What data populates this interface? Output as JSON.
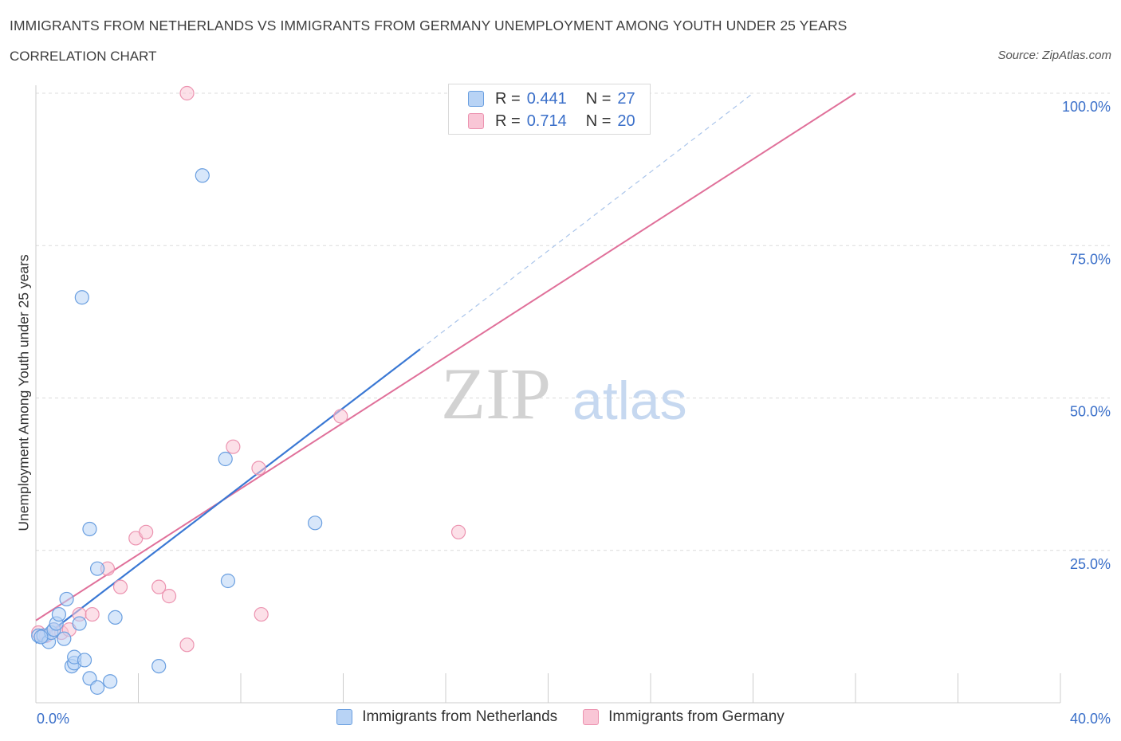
{
  "header": {
    "title": "IMMIGRANTS FROM NETHERLANDS VS IMMIGRANTS FROM GERMANY UNEMPLOYMENT AMONG YOUTH UNDER 25 YEARS",
    "subtitle": "CORRELATION CHART",
    "source": "Source: ZipAtlas.com"
  },
  "watermark": {
    "zip": "ZIP",
    "atlas": "atlas"
  },
  "legend_top": {
    "rows": [
      {
        "r_label": "R = ",
        "r_value": "0.441",
        "n_label": "N = ",
        "n_value": "27"
      },
      {
        "r_label": "R = ",
        "r_value": "0.714",
        "n_label": "N = ",
        "n_value": "20"
      }
    ]
  },
  "colors": {
    "netherlands_fill": "#b8d3f5",
    "netherlands_stroke": "#6a9fe0",
    "netherlands_line": "#3a78d4",
    "germany_fill": "#f9c6d6",
    "germany_stroke": "#ec93b0",
    "germany_line": "#e0709a",
    "grid": "#dcdcdc",
    "axis_text": "#3a6fc9"
  },
  "chart_data": {
    "type": "scatter",
    "title": "IMMIGRANTS FROM NETHERLANDS VS IMMIGRANTS FROM GERMANY UNEMPLOYMENT AMONG YOUTH UNDER 25 YEARS",
    "xlabel": "",
    "ylabel": "Unemployment Among Youth under 25 years",
    "xlim": [
      0,
      40
    ],
    "ylim": [
      0,
      100
    ],
    "x_tick_labels": [
      "0.0%",
      "40.0%"
    ],
    "y_tick_labels": [
      "25.0%",
      "50.0%",
      "75.0%",
      "100.0%"
    ],
    "y_tick_values": [
      25,
      50,
      75,
      100
    ],
    "series": [
      {
        "name": "Immigrants from Netherlands",
        "r": 0.441,
        "n": 27,
        "points": [
          [
            0.1,
            11
          ],
          [
            0.3,
            11
          ],
          [
            0.5,
            10
          ],
          [
            0.6,
            11.5
          ],
          [
            0.7,
            12
          ],
          [
            0.8,
            13
          ],
          [
            0.9,
            14.5
          ],
          [
            1.1,
            10.5
          ],
          [
            1.2,
            17
          ],
          [
            1.4,
            6
          ],
          [
            1.5,
            6.5
          ],
          [
            1.5,
            7.5
          ],
          [
            1.7,
            13
          ],
          [
            1.8,
            66.5
          ],
          [
            1.9,
            7
          ],
          [
            2.1,
            28.5
          ],
          [
            2.1,
            4
          ],
          [
            2.4,
            2.5
          ],
          [
            2.4,
            22
          ],
          [
            2.9,
            3.5
          ],
          [
            3.1,
            14
          ],
          [
            4.8,
            6
          ],
          [
            6.5,
            86.5
          ],
          [
            7.4,
            40
          ],
          [
            7.5,
            20
          ],
          [
            10.9,
            29.5
          ],
          [
            0.2,
            10.8
          ]
        ],
        "trend": {
          "x0": 0,
          "y0": 9.8,
          "x1": 15,
          "y1": 58,
          "dashed_to": [
            28,
            100
          ]
        }
      },
      {
        "name": "Immigrants from Germany",
        "r": 0.714,
        "n": 20,
        "points": [
          [
            0.1,
            11.5
          ],
          [
            0.4,
            11
          ],
          [
            0.7,
            12
          ],
          [
            1.0,
            11.5
          ],
          [
            1.3,
            12
          ],
          [
            1.7,
            14.5
          ],
          [
            2.2,
            14.5
          ],
          [
            2.8,
            22
          ],
          [
            3.3,
            19
          ],
          [
            3.9,
            27
          ],
          [
            4.3,
            28
          ],
          [
            4.8,
            19
          ],
          [
            5.2,
            17.5
          ],
          [
            5.9,
            9.5
          ],
          [
            5.9,
            100
          ],
          [
            7.7,
            42
          ],
          [
            8.7,
            38.5
          ],
          [
            8.8,
            14.5
          ],
          [
            11.9,
            47
          ],
          [
            16.5,
            28
          ]
        ],
        "trend": {
          "x0": 0,
          "y0": 13.5,
          "x1": 32,
          "y1": 100
        }
      }
    ]
  },
  "legend_bottom": {
    "items": [
      {
        "label": "Immigrants from Netherlands"
      },
      {
        "label": "Immigrants from Germany"
      }
    ]
  }
}
